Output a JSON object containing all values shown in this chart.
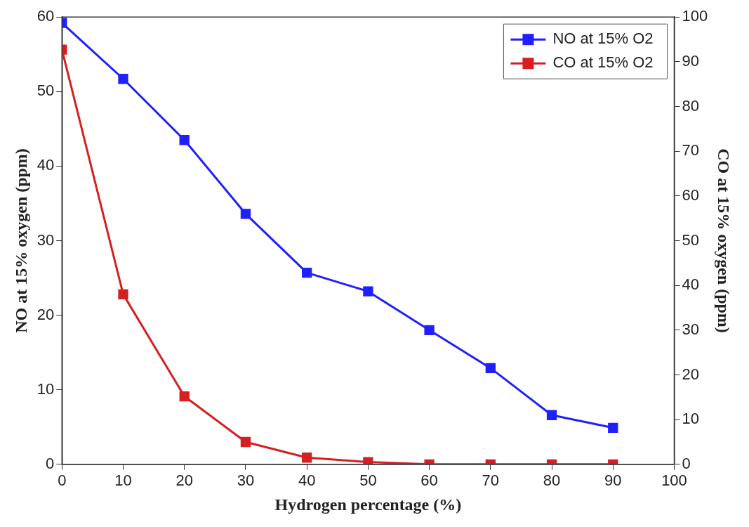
{
  "chart_data": {
    "type": "line",
    "xlabel": "Hydrogen percentage (%)",
    "ylabel": "NO at 15% oxygen (ppm)",
    "y2label": "CO at 15% oxygen (ppm)",
    "x": [
      0,
      10,
      20,
      30,
      40,
      50,
      60,
      70,
      80,
      90
    ],
    "series": [
      {
        "name": "NO at 15% O2",
        "color": "#1f1fff",
        "values": [
          59.2,
          51.7,
          43.5,
          33.6,
          25.7,
          23.2,
          18.0,
          12.9,
          6.6,
          4.9
        ]
      },
      {
        "name": "CO at 15% O2",
        "color": "#d42020",
        "axis": "y2",
        "values": [
          92.7,
          38.0,
          15.2,
          5.0,
          1.5,
          0.5,
          0,
          0,
          0,
          0
        ]
      }
    ],
    "xlim": [
      0,
      100
    ],
    "xticks": [
      0,
      10,
      20,
      30,
      40,
      50,
      60,
      70,
      80,
      90,
      100
    ],
    "ylim": [
      0,
      60
    ],
    "yticks": [
      0,
      10,
      20,
      30,
      40,
      50,
      60
    ],
    "y2lim": [
      0,
      100
    ],
    "y2ticks": [
      0,
      10,
      20,
      30,
      40,
      50,
      60,
      70,
      80,
      90,
      100
    ],
    "legend": "top right",
    "marker": "square",
    "line_style": "solid",
    "grid": false
  }
}
